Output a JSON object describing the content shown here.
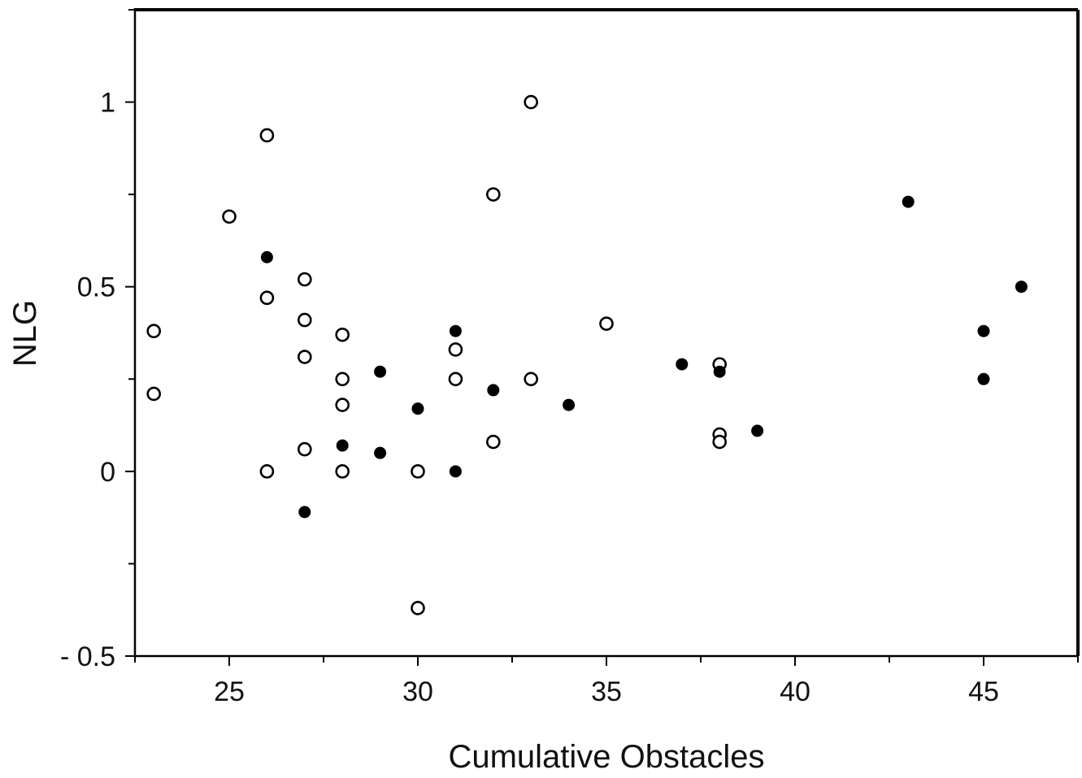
{
  "chart_data": {
    "type": "scatter",
    "title": "",
    "xlabel": "Cumulative Obstacles",
    "ylabel": "NLG",
    "xlim": [
      22.5,
      47.5
    ],
    "ylim": [
      -0.5,
      1.25
    ],
    "x_ticks": [
      25,
      30,
      35,
      40,
      45
    ],
    "x_tick_labels": [
      "25",
      "30",
      "35",
      "40",
      "45"
    ],
    "y_ticks": [
      -0.5,
      0,
      0.5,
      1
    ],
    "y_tick_labels": [
      "- 0.5",
      "0",
      "0.5",
      "1"
    ],
    "grid": false,
    "legend": "none",
    "series": [
      {
        "marker": "open-circle",
        "color": "#000000",
        "points": [
          {
            "x": 23,
            "y": 0.38
          },
          {
            "x": 23,
            "y": 0.21
          },
          {
            "x": 25,
            "y": 0.69
          },
          {
            "x": 26,
            "y": 0.91
          },
          {
            "x": 26,
            "y": 0.47
          },
          {
            "x": 26,
            "y": 0.0
          },
          {
            "x": 27,
            "y": 0.52
          },
          {
            "x": 27,
            "y": 0.41
          },
          {
            "x": 27,
            "y": 0.31
          },
          {
            "x": 27,
            "y": 0.06
          },
          {
            "x": 28,
            "y": 0.37
          },
          {
            "x": 28,
            "y": 0.25
          },
          {
            "x": 28,
            "y": 0.18
          },
          {
            "x": 28,
            "y": 0.0
          },
          {
            "x": 30,
            "y": 0.0
          },
          {
            "x": 30,
            "y": -0.37
          },
          {
            "x": 31,
            "y": 0.33
          },
          {
            "x": 31,
            "y": 0.25
          },
          {
            "x": 32,
            "y": 0.75
          },
          {
            "x": 32,
            "y": 0.08
          },
          {
            "x": 33,
            "y": 1.0
          },
          {
            "x": 33,
            "y": 0.25
          },
          {
            "x": 35,
            "y": 0.4
          },
          {
            "x": 38,
            "y": 0.29
          },
          {
            "x": 38,
            "y": 0.1
          },
          {
            "x": 38,
            "y": 0.08
          }
        ]
      },
      {
        "marker": "filled-circle",
        "color": "#000000",
        "points": [
          {
            "x": 26,
            "y": 0.58
          },
          {
            "x": 27,
            "y": -0.11
          },
          {
            "x": 28,
            "y": 0.07
          },
          {
            "x": 29,
            "y": 0.27
          },
          {
            "x": 29,
            "y": 0.05
          },
          {
            "x": 30,
            "y": 0.17
          },
          {
            "x": 31,
            "y": 0.38
          },
          {
            "x": 31,
            "y": 0.0
          },
          {
            "x": 32,
            "y": 0.22
          },
          {
            "x": 34,
            "y": 0.18
          },
          {
            "x": 37,
            "y": 0.29
          },
          {
            "x": 38,
            "y": 0.27
          },
          {
            "x": 39,
            "y": 0.11
          },
          {
            "x": 43,
            "y": 0.73
          },
          {
            "x": 45,
            "y": 0.38
          },
          {
            "x": 45,
            "y": 0.25
          },
          {
            "x": 46,
            "y": 0.5
          }
        ]
      }
    ]
  }
}
